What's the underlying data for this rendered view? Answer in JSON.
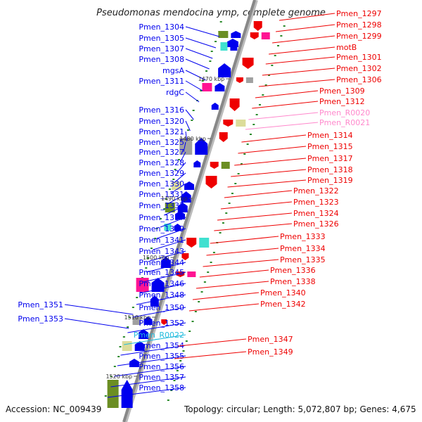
{
  "title": "Pseudomonas mendocina ymp, complete genome",
  "footer": {
    "accession": "Accession: NC_009439",
    "topology": "Topology: circular; Length: 5,072,807 bp; Genes: 4,675"
  },
  "kbp_marks": [
    "1470 kbp",
    "1480 kbp",
    "1490 kbp",
    "1500 kbp",
    "1510 kbp",
    "1520 kbp"
  ],
  "left_genes": [
    "Pmen_1304",
    "Pmen_1305",
    "Pmen_1307",
    "Pmen_1308",
    "mgsA",
    "Pmen_1311",
    "rdgC",
    "Pmen_1316",
    "Pmen_1320",
    "Pmen_1321",
    "Pmen_1325",
    "Pmen_1327",
    "Pmen_1328",
    "Pmen_1329",
    "Pmen_1330",
    "Pmen_1331",
    "Pmen_1332",
    "Pmen_1337",
    "Pmen_1339",
    "Pmen_1341",
    "Pmen_1343",
    "Pmen_1344",
    "Pmen_1345",
    "Pmen_1346",
    "Pmen_1348",
    "Pmen_1351",
    "Pmen_1350",
    "Pmen_1353",
    "Pmen_1352",
    "Pmen_R0022",
    "Pmen_1354",
    "Pmen_1355",
    "Pmen_1356",
    "Pmen_1357",
    "Pmen_1358"
  ],
  "right_genes": [
    "Pmen_1297",
    "Pmen_1298",
    "Pmen_1299",
    "motB",
    "Pmen_1301",
    "Pmen_1302",
    "Pmen_1306",
    "Pmen_1309",
    "Pmen_1312",
    "Pmen_R0020",
    "Pmen_R0021",
    "Pmen_1314",
    "Pmen_1315",
    "Pmen_1317",
    "Pmen_1318",
    "Pmen_1319",
    "Pmen_1322",
    "Pmen_1323",
    "Pmen_1324",
    "Pmen_1326",
    "Pmen_1333",
    "Pmen_1334",
    "Pmen_1335",
    "Pmen_1336",
    "Pmen_1338",
    "Pmen_1340",
    "Pmen_1342",
    "Pmen_1347",
    "Pmen_1349"
  ],
  "colors": {
    "forward_strand": "#0000ee",
    "reverse_strand": "#ee0000",
    "rna_left": "#22bbdd",
    "rna_right": "#ff88cc",
    "axis": "#888888"
  }
}
